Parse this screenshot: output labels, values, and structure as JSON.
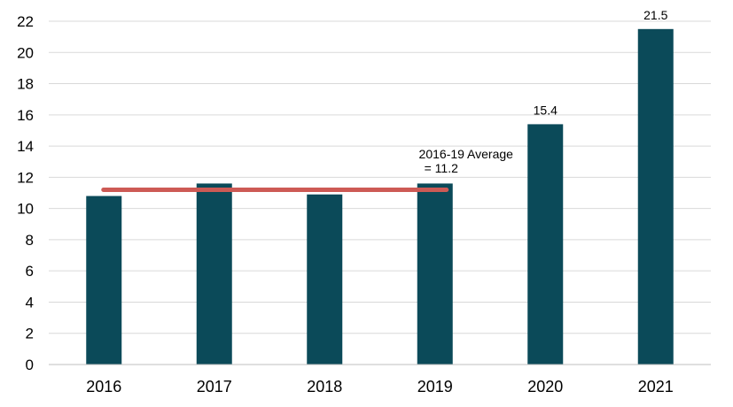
{
  "chart_data": {
    "type": "bar",
    "categories": [
      "2016",
      "2017",
      "2018",
      "2019",
      "2020",
      "2021"
    ],
    "values": [
      10.8,
      11.6,
      10.9,
      11.6,
      15.4,
      21.5
    ],
    "data_labels": [
      "",
      "",
      "",
      "",
      "15.4",
      "21.5"
    ],
    "title": "",
    "xlabel": "",
    "ylabel": "",
    "ylim": [
      0,
      22
    ],
    "yticks": [
      0,
      2,
      4,
      6,
      8,
      10,
      12,
      14,
      16,
      18,
      20,
      22
    ],
    "grid": true,
    "legend": "none",
    "bar_color": "#0b4a59",
    "average_line": {
      "value": 11.2,
      "from_category": "2016",
      "to_category": "2019",
      "color": "#cd5a55",
      "label_line1": "2016-19 Average",
      "label_line2": "=  11.2"
    }
  }
}
